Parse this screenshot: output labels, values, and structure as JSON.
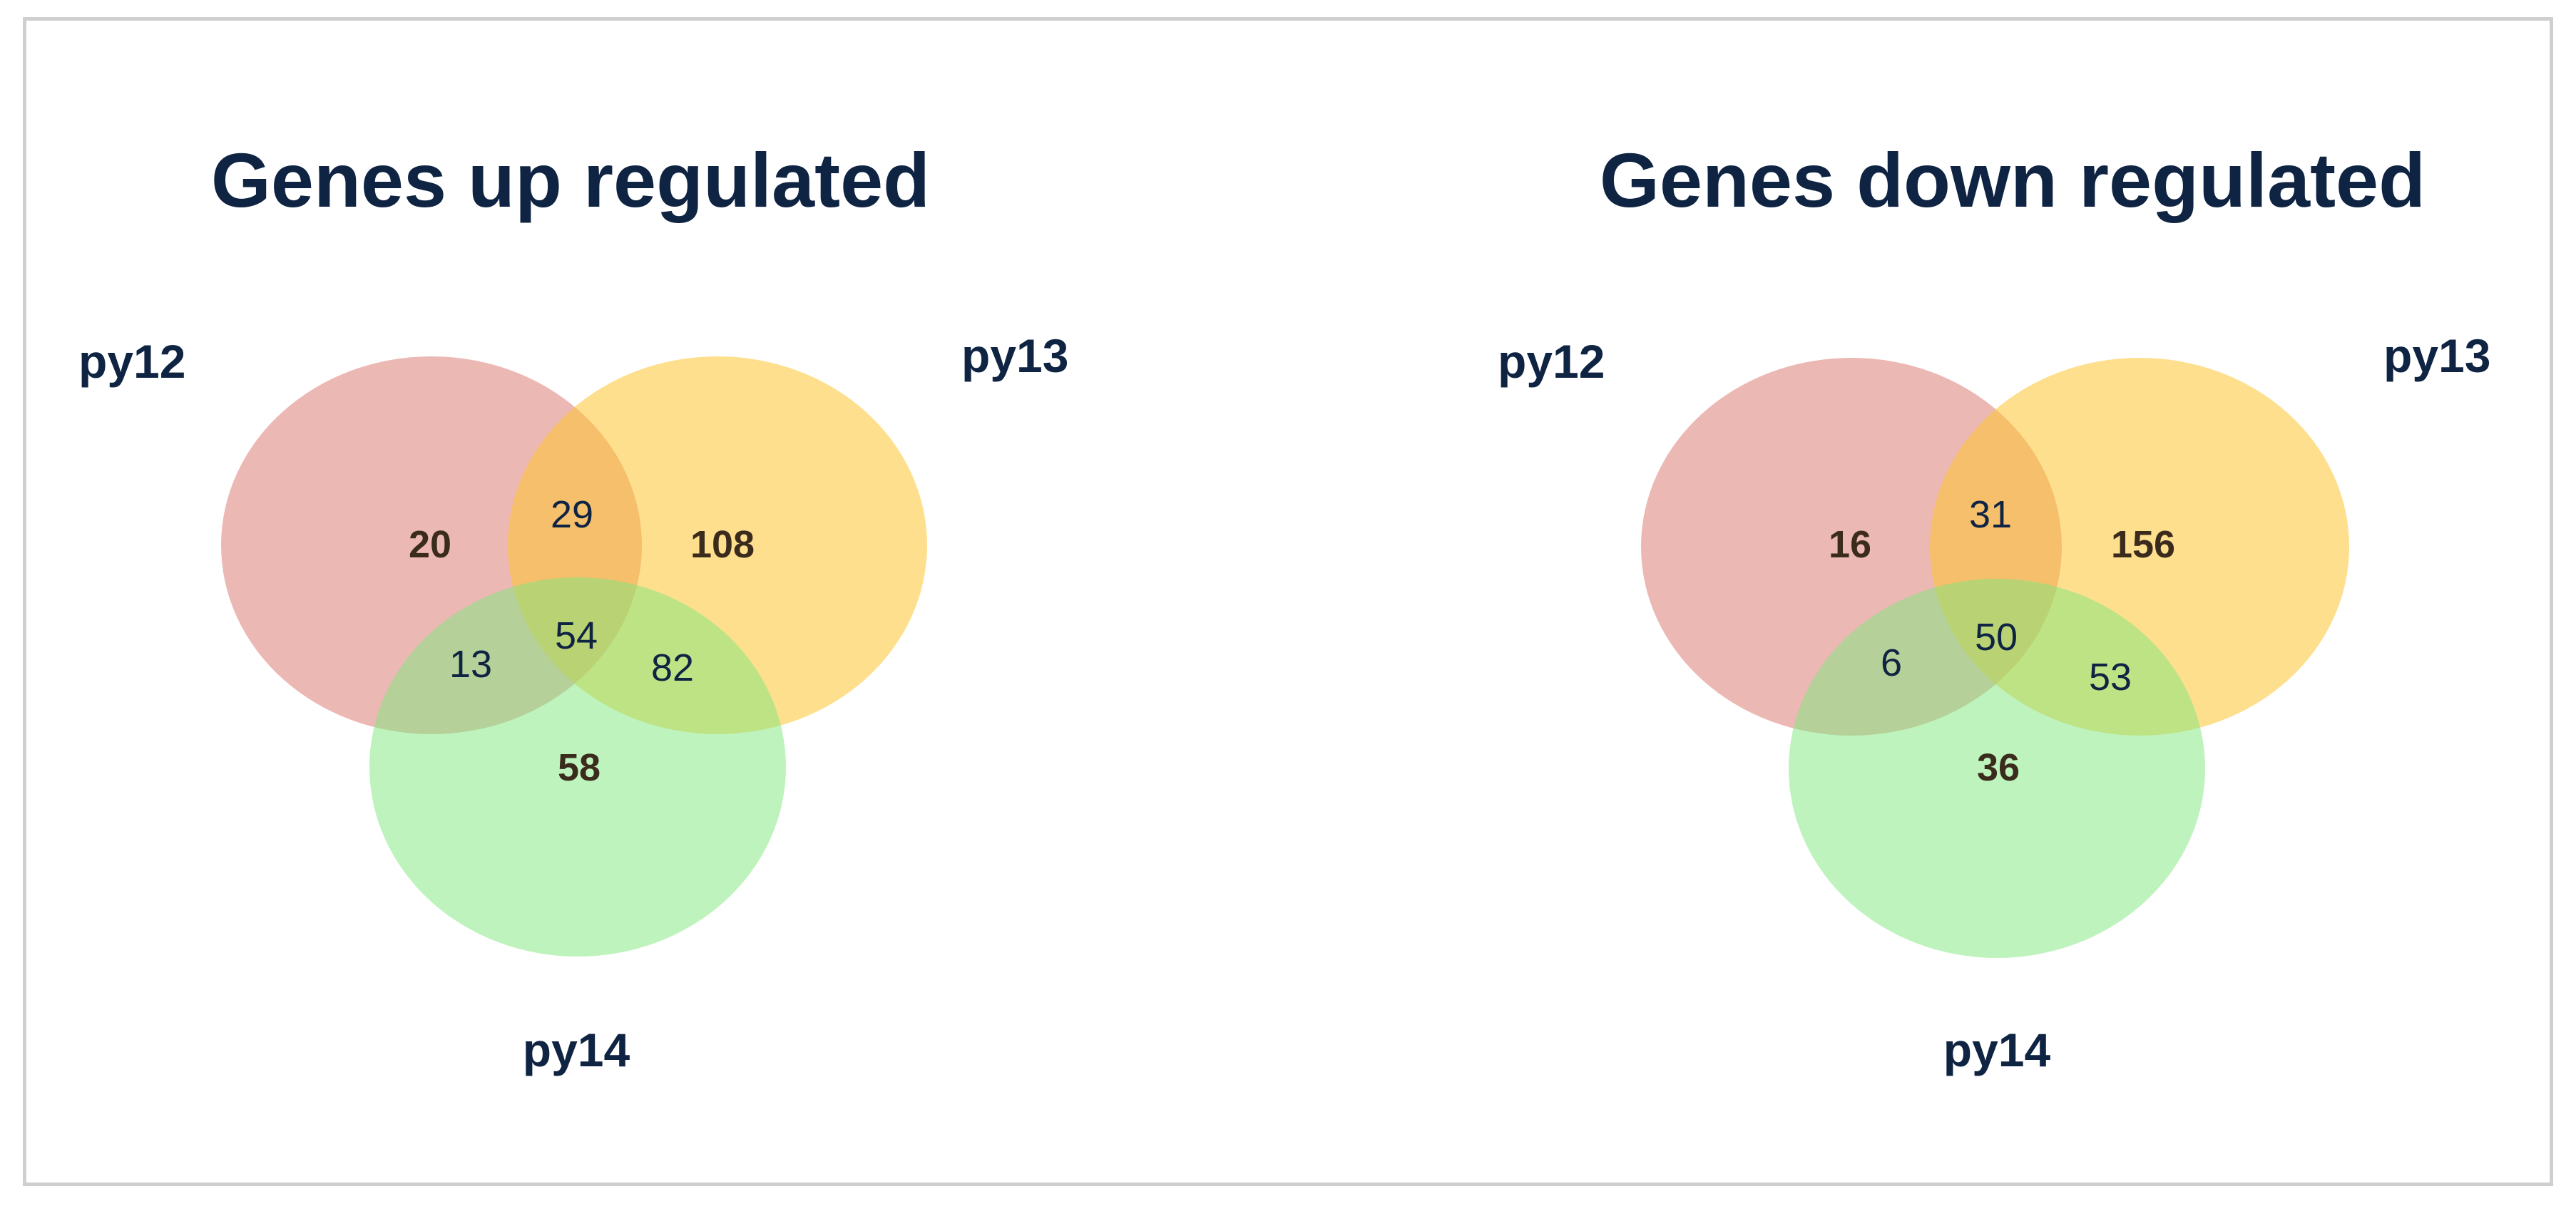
{
  "colors": {
    "title": "#0f2342",
    "label": "#0f2342",
    "count_bold": "#3a2b1c",
    "count_normal": "#0f2342",
    "set_a": "#d9726a",
    "set_b": "#fdc431",
    "set_c": "#7ee87c",
    "frame": "#cfcfcf"
  },
  "diagrams": [
    {
      "title": "Genes up regulated",
      "sets": {
        "a": "py12",
        "b": "py13",
        "c": "py14"
      },
      "counts": {
        "a_only": "20",
        "ab": "29",
        "b_only": "108",
        "ac": "13",
        "abc": "54",
        "bc": "82",
        "c_only": "58"
      }
    },
    {
      "title": "Genes down regulated",
      "sets": {
        "a": "py12",
        "b": "py13",
        "c": "py14"
      },
      "counts": {
        "a_only": "16",
        "ab": "31",
        "b_only": "156",
        "ac": "6",
        "abc": "50",
        "bc": "53",
        "c_only": "36"
      }
    }
  ]
}
